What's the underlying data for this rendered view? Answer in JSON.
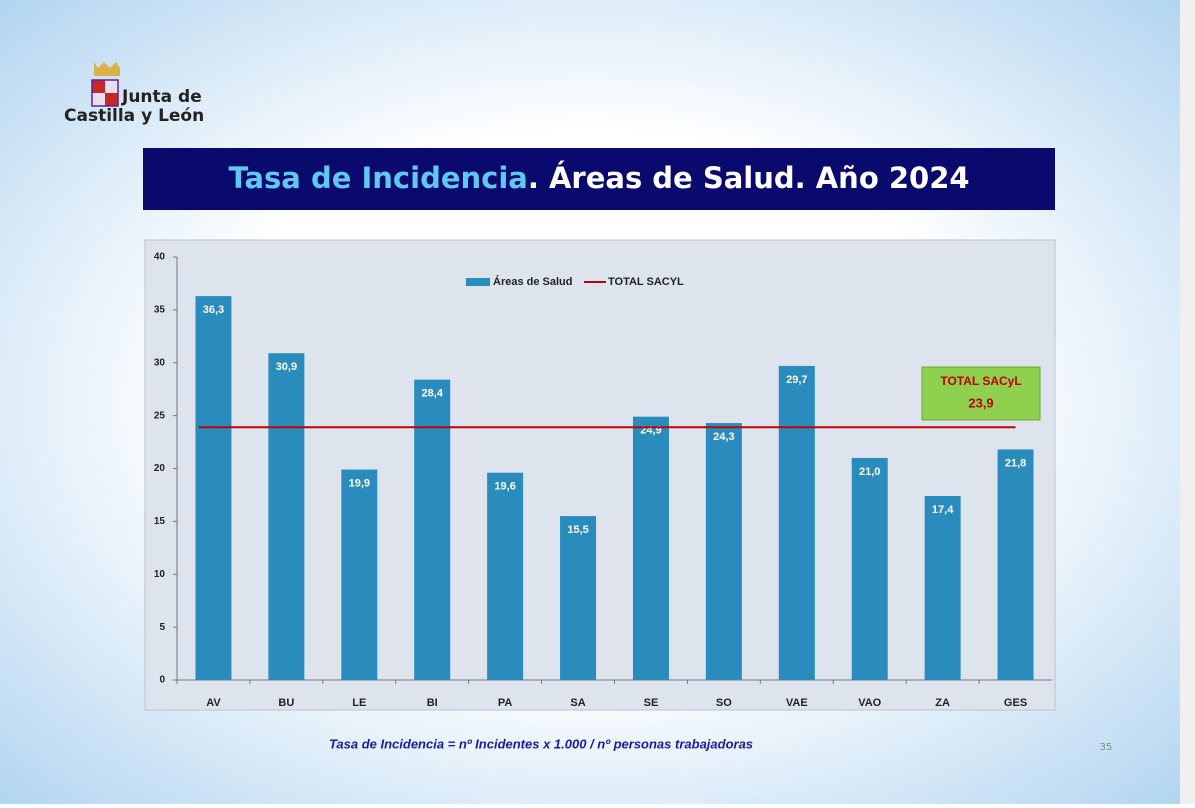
{
  "slide": {
    "logo_line1": "Junta de",
    "logo_line2": "Castilla y León",
    "footnote": "Tasa de Incidencia = nº Incidentes x 1.000 / nº personas trabajadoras",
    "page_number": "35"
  },
  "chart_data": {
    "type": "bar",
    "title_parts": [
      "Tasa de Incidencia",
      ". Áreas de Salud. Año 2024"
    ],
    "categories": [
      "AV",
      "BU",
      "LE",
      "BI",
      "PA",
      "SA",
      "SE",
      "SO",
      "VAE",
      "VAO",
      "ZA",
      "GES"
    ],
    "series": [
      {
        "name": "Áreas de Salud",
        "color": "#2a8cbd",
        "values": [
          36.3,
          30.9,
          19.9,
          28.4,
          19.6,
          15.5,
          24.9,
          24.3,
          29.7,
          21.0,
          17.4,
          21.8
        ],
        "value_labels": [
          "36,3",
          "30,9",
          "19,9",
          "28,4",
          "19,6",
          "15,5",
          "24,9",
          "24,3",
          "29,7",
          "21,0",
          "17,4",
          "21,8"
        ]
      }
    ],
    "reference_line": {
      "name": "TOTAL SACYL",
      "value": 23.9,
      "color": "#c00000"
    },
    "annotation": {
      "label": "TOTAL SACyL",
      "value_label": "23,9"
    },
    "ylim": [
      0,
      40
    ],
    "yticks": [
      0,
      5,
      10,
      15,
      20,
      25,
      30,
      35,
      40
    ],
    "grid": false
  }
}
